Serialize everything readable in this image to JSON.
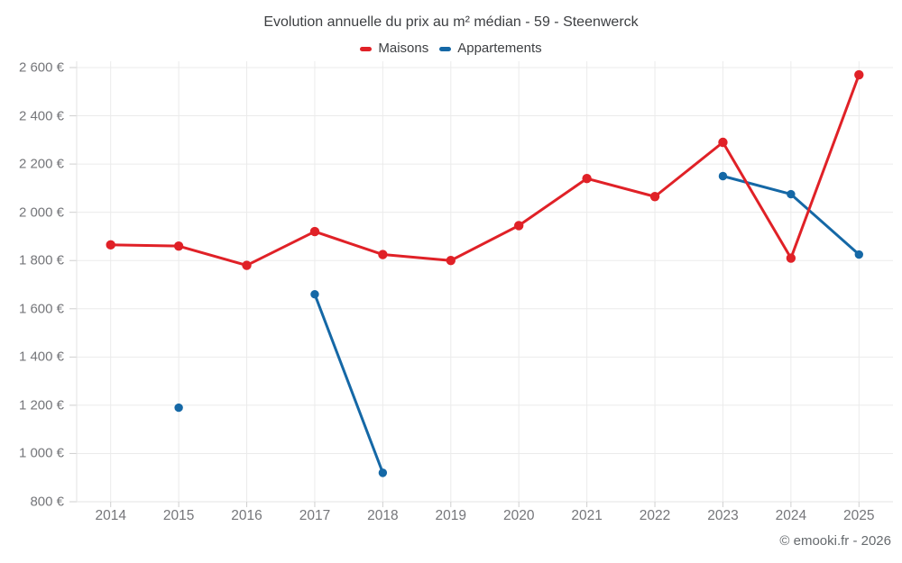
{
  "header": {
    "title": "Evolution annuelle du prix au m² médian - 59 - Steenwerck"
  },
  "footer": {
    "attribution": "© emooki.fr - 2026"
  },
  "chart_data": {
    "type": "line",
    "title": "Evolution annuelle du prix au m² médian - 59 - Steenwerck",
    "categories": [
      "2014",
      "2015",
      "2016",
      "2017",
      "2018",
      "2019",
      "2020",
      "2021",
      "2022",
      "2023",
      "2024",
      "2025"
    ],
    "series": [
      {
        "name": "Maisons",
        "color": "#e02127",
        "point_radius": 5.2,
        "line_width": 3,
        "values": [
          1865,
          1860,
          1780,
          1920,
          1825,
          1800,
          1945,
          2140,
          2065,
          2290,
          1810,
          2570
        ]
      },
      {
        "name": "Appartements",
        "color": "#1568a6",
        "point_radius": 4.7,
        "line_width": 3,
        "values": [
          null,
          1190,
          null,
          1660,
          920,
          null,
          null,
          null,
          null,
          2150,
          2075,
          1825
        ]
      }
    ],
    "ylim": [
      800,
      2600
    ],
    "ytick_step": 200,
    "ytick_labels": [
      "800 €",
      "1 000 €",
      "1 200 €",
      "1 400 €",
      "1 600 €",
      "1 800 €",
      "2 000 €",
      "2 200 €",
      "2 400 €",
      "2 600 €"
    ],
    "xlabel": "",
    "ylabel": "",
    "grid": true,
    "span_gaps": false,
    "legend_position": "top",
    "style": {
      "grid_color": "#ebebeb",
      "axis_line_color": "#e3e3e3",
      "tick_color": "#cfcfcf",
      "axis_text_color": "#75767a",
      "title_color": "#3d3f42"
    }
  }
}
